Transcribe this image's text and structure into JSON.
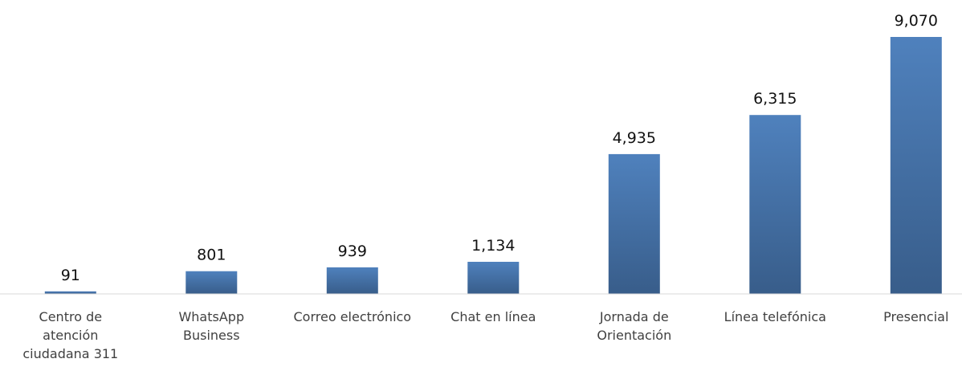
{
  "chart_data": {
    "type": "bar",
    "categories": [
      "Centro de atención ciudadana 311",
      "WhatsApp Business",
      "Correo electrónico",
      "Chat en línea",
      "Jornada de Orientación",
      "Línea telefónica",
      "Presencial"
    ],
    "category_lines": [
      [
        "Centro de",
        "atención",
        "ciudadana 311"
      ],
      [
        "WhatsApp",
        "Business"
      ],
      [
        "Correo electrónico"
      ],
      [
        "Chat en línea"
      ],
      [
        "Jornada de",
        "Orientación"
      ],
      [
        "Línea telefónica"
      ],
      [
        "Presencial"
      ]
    ],
    "values": [
      91,
      801,
      939,
      1134,
      4935,
      6315,
      9070
    ],
    "value_labels": [
      "91",
      "801",
      "939",
      "1,134",
      "4,935",
      "6,315",
      "9,070"
    ],
    "title": "",
    "xlabel": "",
    "ylabel": "",
    "ylim": [
      0,
      9070
    ],
    "grid": false,
    "legend": "none",
    "bar_color_light": "#4f81bd",
    "bar_color_dark": "#385d8a",
    "axis_color": "#d9d9d9"
  }
}
